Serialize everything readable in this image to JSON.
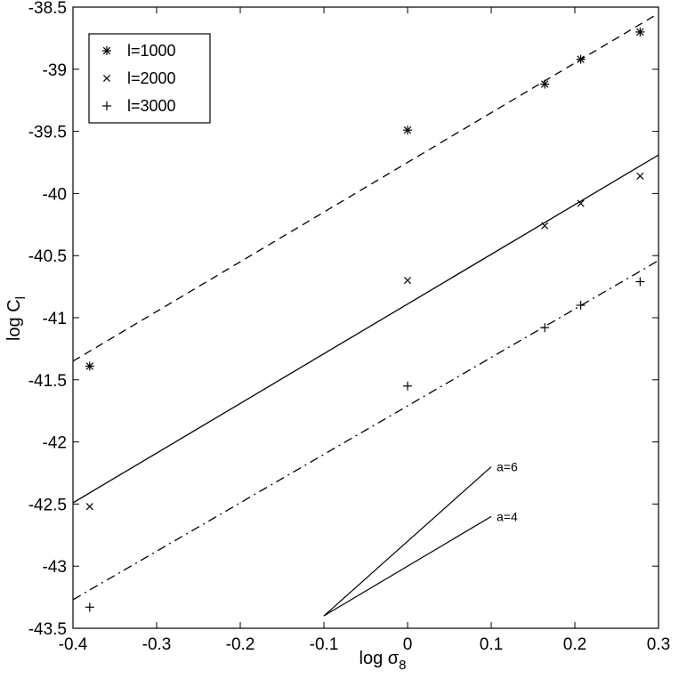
{
  "chart_data": {
    "type": "scatter",
    "xlabel": "log σ",
    "xlabel_sub": "8",
    "ylabel": "log C",
    "ylabel_sub": "l",
    "xlim": [
      -0.4,
      0.3
    ],
    "ylim": [
      -43.5,
      -38.5
    ],
    "xticks": [
      -0.4,
      -0.3,
      -0.2,
      -0.1,
      0,
      0.1,
      0.2,
      0.3
    ],
    "xtick_labels": [
      "-0.4",
      "-0.3",
      "-0.2",
      "-0.1",
      "0",
      "0.1",
      "0.2",
      "0.3"
    ],
    "yticks": [
      -38.5,
      -39,
      -39.5,
      -40,
      -40.5,
      -41,
      -41.5,
      -42,
      -42.5,
      -43,
      -43.5
    ],
    "ytick_labels": [
      "-38.5",
      "-39",
      "-39.5",
      "-40",
      "-40.5",
      "-41",
      "-41.5",
      "-42",
      "-42.5",
      "-43",
      "-43.5"
    ],
    "grid": false,
    "legend_position": "top-left",
    "series": [
      {
        "name": "l=1000",
        "marker": "asterisk",
        "x": [
          -0.38,
          0.0,
          0.164,
          0.207,
          0.278
        ],
        "y": [
          -41.39,
          -39.49,
          -39.12,
          -38.92,
          -38.7
        ],
        "fit_line": {
          "style": "dashed",
          "x": [
            -0.4,
            0.3
          ],
          "y": [
            -41.35,
            -38.55
          ]
        }
      },
      {
        "name": "l=2000",
        "marker": "x",
        "x": [
          -0.38,
          0.0,
          0.164,
          0.207,
          0.278
        ],
        "y": [
          -42.52,
          -40.7,
          -40.26,
          -40.08,
          -39.86
        ],
        "fit_line": {
          "style": "solid",
          "x": [
            -0.4,
            0.3
          ],
          "y": [
            -42.49,
            -39.69
          ]
        }
      },
      {
        "name": "l=3000",
        "marker": "plus",
        "x": [
          -0.38,
          0.0,
          0.164,
          0.207,
          0.278
        ],
        "y": [
          -43.33,
          -41.55,
          -41.08,
          -40.9,
          -40.71
        ],
        "fit_line": {
          "style": "dashdot",
          "x": [
            -0.4,
            0.3
          ],
          "y": [
            -43.27,
            -40.54
          ]
        }
      }
    ],
    "reference_slopes": [
      {
        "label": "a=6",
        "x": [
          -0.1,
          0.1
        ],
        "y": [
          -43.4,
          -42.2
        ]
      },
      {
        "label": "a=4",
        "x": [
          -0.1,
          0.1
        ],
        "y": [
          -43.4,
          -42.6
        ]
      }
    ]
  }
}
